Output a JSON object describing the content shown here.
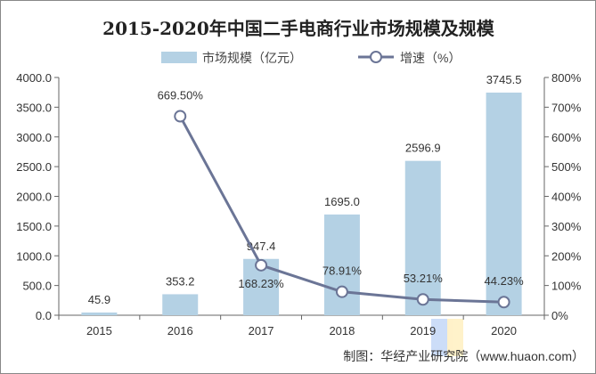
{
  "chart_data": {
    "type": "bar+line",
    "title": "2015-2020年中国二手电商行业市场规模及规模",
    "categories": [
      "2015",
      "2016",
      "2017",
      "2018",
      "2019",
      "2020"
    ],
    "series": [
      {
        "name": "市场规模（亿元）",
        "type": "bar",
        "axis": "left",
        "values": [
          45.9,
          353.2,
          947.4,
          1695.0,
          2596.9,
          3745.5
        ],
        "labels": [
          "45.9",
          "353.2",
          "947.4",
          "1695.0",
          "2596.9",
          "3745.5"
        ],
        "color": "#b4d1e4"
      },
      {
        "name": "增速（%）",
        "type": "line",
        "axis": "right",
        "values": [
          null,
          669.5,
          168.23,
          78.91,
          53.21,
          44.23
        ],
        "labels": [
          "",
          "669.50%",
          "168.23%",
          "78.91%",
          "53.21%",
          "44.23%"
        ],
        "color": "#6b7596"
      }
    ],
    "left_axis": {
      "ylim": [
        0,
        4000
      ],
      "ticks": [
        "0.0",
        "500.0",
        "1000.0",
        "1500.0",
        "2000.0",
        "2500.0",
        "3000.0",
        "3500.0",
        "4000.0"
      ]
    },
    "right_axis": {
      "ylim": [
        0,
        800
      ],
      "ticks": [
        "0%",
        "100%",
        "200%",
        "300%",
        "400%",
        "500%",
        "600%",
        "700%",
        "800%"
      ]
    },
    "grid": false,
    "legend": "top-center"
  },
  "source": "制图：华经产业研究院（www.huaon.com）",
  "watermark": "华经情报网"
}
